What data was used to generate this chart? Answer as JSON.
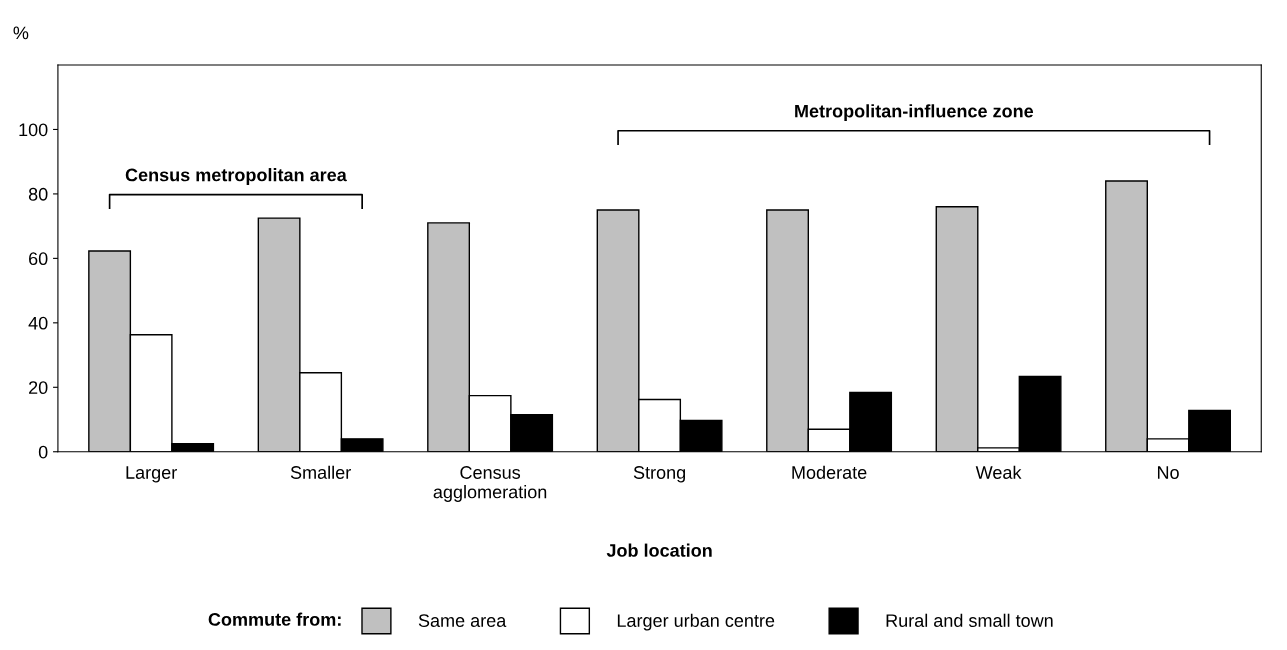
{
  "chart_data": {
    "type": "bar",
    "ylabel": "%",
    "xlabel": "Job location",
    "legend_title": "Commute from:",
    "categories": [
      "Larger",
      "Smaller",
      "Census\nagglomeration",
      "Strong",
      "Moderate",
      "Weak",
      "No"
    ],
    "series": [
      {
        "name": "Same area",
        "color": "#c0c0c0",
        "values": [
          62.3,
          72.5,
          71,
          75,
          75,
          76,
          84
        ]
      },
      {
        "name": "Larger urban centre",
        "color": "#ffffff",
        "values": [
          36.3,
          24.5,
          17.4,
          16.2,
          7,
          1.2,
          4
        ]
      },
      {
        "name": "Rural and small town",
        "color": "#000000",
        "values": [
          2.5,
          4,
          11.5,
          9.7,
          18.4,
          23.4,
          12.8
        ]
      }
    ],
    "annotations": [
      "Census metropolitan area",
      "Metropolitan-influence zone"
    ],
    "ylim": [
      0,
      120
    ],
    "yticks": [
      0,
      20,
      40,
      60,
      80,
      100
    ],
    "grid": false,
    "legend": "bottom"
  }
}
